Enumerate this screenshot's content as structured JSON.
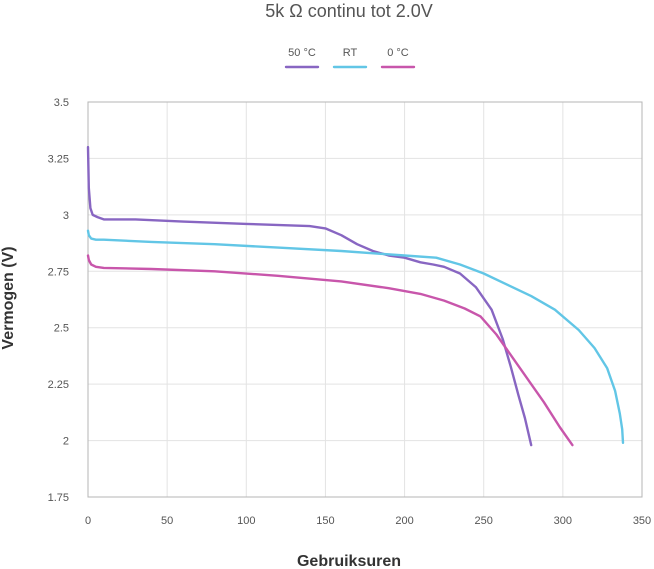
{
  "chart_data": {
    "type": "line",
    "title": "5k Ω continu tot 2.0V",
    "xlabel": "Gebruiksuren",
    "ylabel": "Vermogen (V)",
    "xlim": [
      0,
      350
    ],
    "ylim": [
      1.75,
      3.5
    ],
    "x_ticks": [
      0,
      50,
      100,
      150,
      200,
      250,
      300,
      350
    ],
    "x_tick_labels": [
      "0",
      "50",
      "100",
      "150",
      "200",
      "250",
      "300",
      "350"
    ],
    "y_ticks": [
      1.75,
      2,
      2.25,
      2.5,
      2.75,
      3,
      3.25,
      3.5
    ],
    "y_tick_labels": [
      "1.75",
      "2",
      "2.25",
      "2.5",
      "2.75",
      "3",
      "3.25",
      "3.5"
    ],
    "grid": true,
    "legend_position": "top-center",
    "series": [
      {
        "name": "50 °C",
        "color": "#8866c2",
        "points": [
          [
            0,
            3.3
          ],
          [
            0.5,
            3.12
          ],
          [
            1.5,
            3.03
          ],
          [
            3,
            3.0
          ],
          [
            6,
            2.99
          ],
          [
            10,
            2.98
          ],
          [
            30,
            2.98
          ],
          [
            60,
            2.97
          ],
          [
            100,
            2.96
          ],
          [
            140,
            2.95
          ],
          [
            150,
            2.94
          ],
          [
            160,
            2.91
          ],
          [
            170,
            2.87
          ],
          [
            180,
            2.84
          ],
          [
            190,
            2.82
          ],
          [
            200,
            2.81
          ],
          [
            210,
            2.79
          ],
          [
            218,
            2.78
          ],
          [
            225,
            2.77
          ],
          [
            235,
            2.74
          ],
          [
            245,
            2.68
          ],
          [
            255,
            2.58
          ],
          [
            262,
            2.45
          ],
          [
            267,
            2.33
          ],
          [
            272,
            2.2
          ],
          [
            276,
            2.1
          ],
          [
            280,
            1.98
          ]
        ]
      },
      {
        "name": "RT",
        "color": "#62c6e6",
        "points": [
          [
            0,
            2.93
          ],
          [
            0.5,
            2.91
          ],
          [
            2,
            2.895
          ],
          [
            5,
            2.89
          ],
          [
            10,
            2.89
          ],
          [
            40,
            2.88
          ],
          [
            80,
            2.87
          ],
          [
            120,
            2.855
          ],
          [
            160,
            2.84
          ],
          [
            200,
            2.82
          ],
          [
            220,
            2.81
          ],
          [
            235,
            2.78
          ],
          [
            250,
            2.74
          ],
          [
            265,
            2.69
          ],
          [
            280,
            2.64
          ],
          [
            295,
            2.58
          ],
          [
            310,
            2.49
          ],
          [
            320,
            2.41
          ],
          [
            328,
            2.32
          ],
          [
            333,
            2.22
          ],
          [
            336,
            2.12
          ],
          [
            337.5,
            2.05
          ],
          [
            338,
            1.99
          ]
        ]
      },
      {
        "name": "0 °C",
        "color": "#c856ab",
        "points": [
          [
            0,
            2.82
          ],
          [
            0.5,
            2.8
          ],
          [
            2,
            2.78
          ],
          [
            5,
            2.77
          ],
          [
            10,
            2.765
          ],
          [
            40,
            2.76
          ],
          [
            80,
            2.75
          ],
          [
            120,
            2.73
          ],
          [
            160,
            2.705
          ],
          [
            190,
            2.675
          ],
          [
            210,
            2.65
          ],
          [
            225,
            2.62
          ],
          [
            238,
            2.585
          ],
          [
            248,
            2.55
          ],
          [
            258,
            2.47
          ],
          [
            268,
            2.37
          ],
          [
            278,
            2.27
          ],
          [
            288,
            2.17
          ],
          [
            298,
            2.06
          ],
          [
            306,
            1.98
          ]
        ]
      }
    ]
  }
}
